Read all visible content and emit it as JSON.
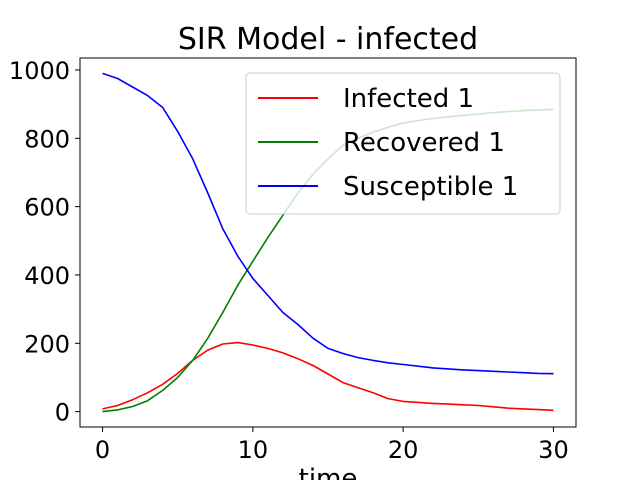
{
  "chart_data": {
    "type": "line",
    "title": "SIR Model - infected",
    "xlabel": "time",
    "ylabel": "",
    "xlim": [
      -1.5,
      31.5
    ],
    "ylim": [
      -45,
      1035
    ],
    "xticks": [
      0,
      10,
      20,
      30
    ],
    "xtick_labels": [
      "0",
      "10",
      "20",
      "30"
    ],
    "yticks": [
      0,
      200,
      400,
      600,
      800,
      1000
    ],
    "ytick_labels": [
      "0",
      "200",
      "400",
      "600",
      "800",
      "1000"
    ],
    "grid": false,
    "legend_position": "top-right",
    "series": [
      {
        "name": "Infected 1",
        "color": "#ff0000",
        "x": [
          0,
          1,
          2,
          3,
          4,
          5,
          6,
          7,
          8,
          9,
          10,
          11,
          12,
          13,
          14,
          15,
          16,
          17,
          18,
          19,
          20,
          21,
          22,
          23,
          24,
          25,
          26,
          27,
          28,
          29,
          30
        ],
        "y": [
          8,
          18,
          35,
          55,
          80,
          112,
          150,
          180,
          198,
          202,
          195,
          185,
          172,
          155,
          135,
          110,
          85,
          70,
          55,
          38,
          30,
          27,
          24,
          22,
          20,
          18,
          14,
          10,
          8,
          6,
          4
        ]
      },
      {
        "name": "Recovered 1",
        "color": "#008000",
        "x": [
          0,
          1,
          2,
          3,
          4,
          5,
          6,
          7,
          8,
          9,
          10,
          11,
          12,
          13,
          14,
          15,
          16,
          17,
          18,
          19,
          20,
          21,
          22,
          23,
          24,
          25,
          26,
          27,
          28,
          29,
          30
        ],
        "y": [
          0,
          5,
          15,
          32,
          62,
          100,
          150,
          215,
          290,
          370,
          440,
          510,
          575,
          640,
          695,
          740,
          780,
          800,
          818,
          832,
          845,
          852,
          858,
          863,
          867,
          871,
          875,
          878,
          881,
          883,
          885
        ]
      },
      {
        "name": "Susceptible 1",
        "color": "#0000ff",
        "x": [
          0,
          1,
          2,
          3,
          4,
          5,
          6,
          7,
          8,
          9,
          10,
          11,
          12,
          13,
          14,
          15,
          16,
          17,
          18,
          19,
          20,
          21,
          22,
          23,
          24,
          25,
          26,
          27,
          28,
          29,
          30
        ],
        "y": [
          990,
          975,
          950,
          925,
          890,
          820,
          740,
          640,
          535,
          455,
          390,
          340,
          290,
          255,
          215,
          185,
          170,
          158,
          150,
          143,
          138,
          133,
          128,
          125,
          122,
          120,
          118,
          116,
          114,
          112,
          111
        ]
      }
    ]
  }
}
